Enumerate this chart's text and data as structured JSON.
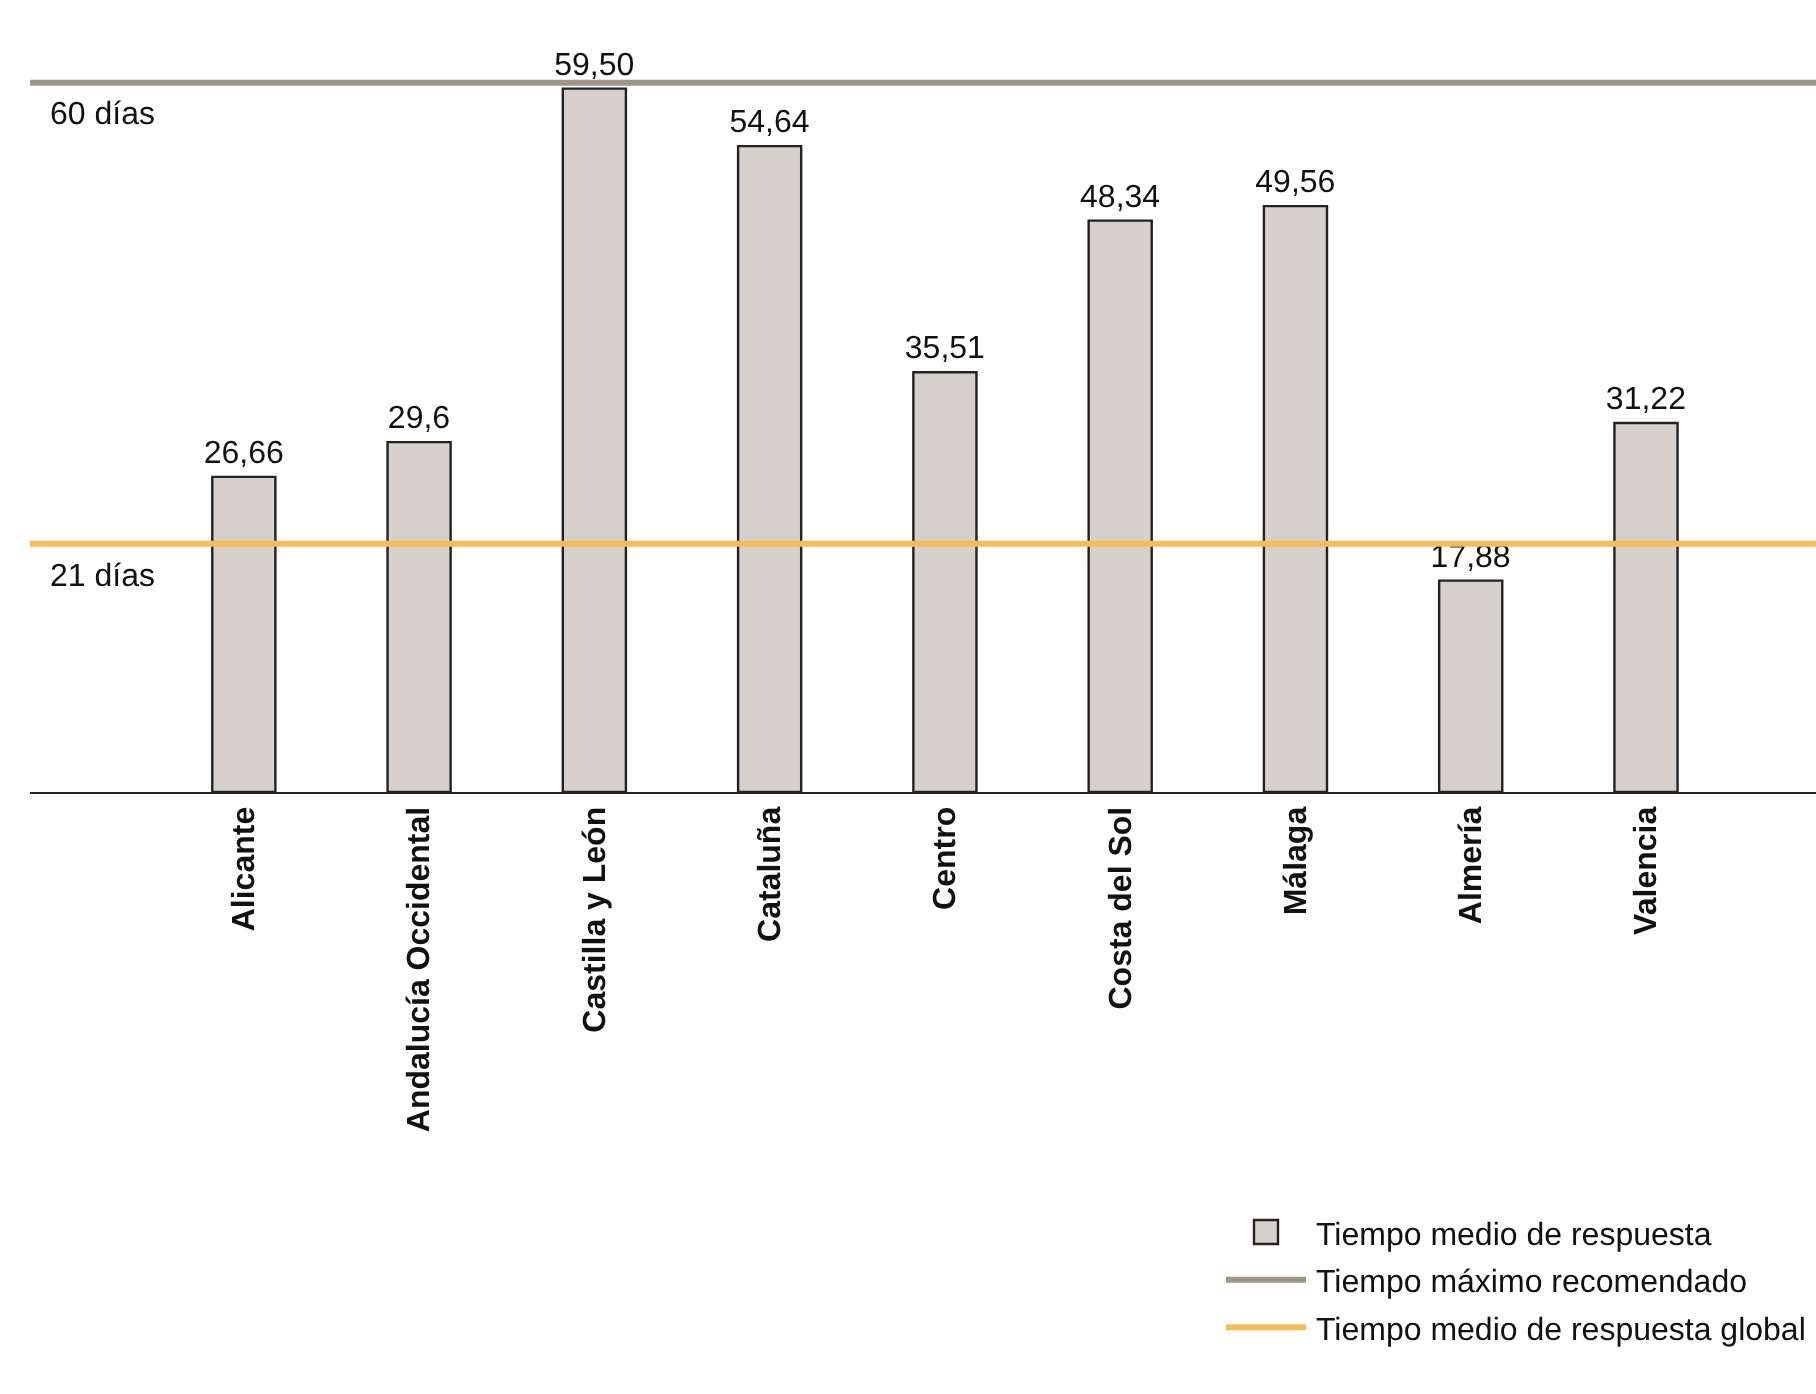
{
  "chart_data": {
    "type": "bar",
    "categories": [
      "Alicante",
      "Andalucía Occidental",
      "Castilla y León",
      "Cataluña",
      "Centro",
      "Costa del Sol",
      "Málaga",
      "Almería",
      "Valencia"
    ],
    "series": [
      {
        "name": "Tiempo medio de respuesta",
        "color": "#d6d2cb",
        "values": [
          26.66,
          29.6,
          59.5,
          54.64,
          35.51,
          48.34,
          49.56,
          17.88,
          31.22
        ],
        "value_labels": [
          "26,66",
          "29,6",
          "59,50",
          "54,64",
          "35,51",
          "48,34",
          "49,56",
          "17,88",
          "31,22"
        ]
      }
    ],
    "ylim": [
      0,
      67
    ],
    "tick_labels": "x",
    "legend": "bottom right",
    "ref_lines": [
      {
        "axis": "y",
        "value": 60,
        "label": "Tiempo máximo recomendado",
        "color": "#a09684"
      },
      {
        "axis": "y",
        "value": 21,
        "label": "Tiempo medio de respuesta global",
        "color": "#f7bc5a"
      }
    ],
    "annotations": [
      {
        "text": "60 días",
        "y": 60
      },
      {
        "text": "21 días",
        "y": 21
      }
    ]
  }
}
